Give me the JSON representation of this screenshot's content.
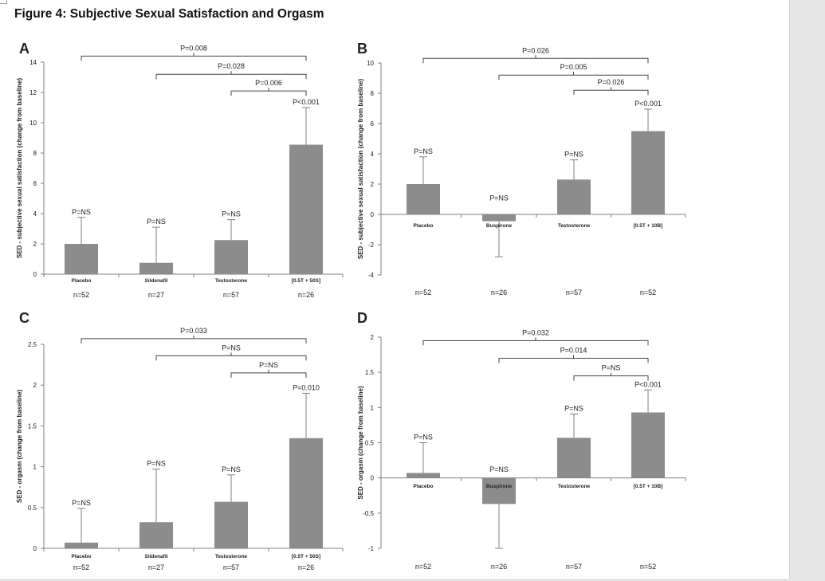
{
  "figure": {
    "title": "Figure 4: Subjective Sexual Satisfaction and Orgasm"
  },
  "colors": {
    "bar": "#8c8c8c",
    "axis": "#7f7f7f",
    "text": "#222222"
  },
  "chart_data": [
    {
      "panel": "A",
      "type": "bar",
      "ylabel": "SED - subjective sexual satisfaction (change from baseline)",
      "ylim": [
        0,
        14
      ],
      "ytick_labels": [
        "0",
        "2",
        "4",
        "6",
        "8",
        "10",
        "12",
        "14"
      ],
      "yticks": [
        0,
        2,
        4,
        6,
        8,
        10,
        12,
        14
      ],
      "categories": [
        "Placebo",
        "Sildenafil",
        "Testosterone",
        "[0.5T + 50S]"
      ],
      "values": [
        2.0,
        0.75,
        2.25,
        8.55
      ],
      "error_upper": [
        3.75,
        3.1,
        3.6,
        11.0
      ],
      "n_labels": [
        "n=52",
        "n=27",
        "n=57",
        "n=26"
      ],
      "bar_labels": [
        "P=NS",
        "P=NS",
        "P=NS",
        "P<0.001"
      ],
      "label_positions": [
        3.75,
        3.1,
        3.6,
        11.0
      ],
      "comparisons": [
        {
          "from": 0,
          "to": 3,
          "label": "P=0.008",
          "level": 14.4
        },
        {
          "from": 1,
          "to": 3,
          "label": "P=0.028",
          "level": 13.2
        },
        {
          "from": 2,
          "to": 3,
          "label": "P=0.006",
          "level": 12.1
        }
      ]
    },
    {
      "panel": "B",
      "type": "bar",
      "ylabel": "SED - subjective sexual satisfaction (change from baseline)",
      "ylim": [
        -4,
        10
      ],
      "ytick_labels": [
        "-4",
        "-2",
        "0",
        "2",
        "4",
        "6",
        "8",
        "10"
      ],
      "yticks": [
        -4,
        -2,
        0,
        2,
        4,
        6,
        8,
        10
      ],
      "categories": [
        "Placebo",
        "Buspirone",
        "Testosterone",
        "[0.5T + 10B]"
      ],
      "values": [
        2.0,
        -0.45,
        2.3,
        5.5
      ],
      "error_upper": [
        3.8,
        -0.45,
        3.6,
        6.95
      ],
      "error_lower": [
        2.0,
        -2.8,
        2.3,
        5.5
      ],
      "n_labels": [
        "n=52",
        "n=26",
        "n=57",
        "n=52"
      ],
      "bar_labels": [
        "P=NS",
        "P=NS",
        "P=NS",
        "P<0.001"
      ],
      "label_positions": [
        3.8,
        0.7,
        3.6,
        6.95
      ],
      "comparisons": [
        {
          "from": 0,
          "to": 3,
          "label": "P=0.026",
          "level": 10.3
        },
        {
          "from": 1,
          "to": 3,
          "label": "P=0.005",
          "level": 9.2
        },
        {
          "from": 2,
          "to": 3,
          "label": "P=0.026",
          "level": 8.2
        }
      ]
    },
    {
      "panel": "C",
      "type": "bar",
      "ylabel": "SED - orgasm (change from baseline)",
      "ylim": [
        0,
        2.5
      ],
      "ytick_labels": [
        "0",
        "0.5",
        "1",
        "1.5",
        "2",
        "2.5"
      ],
      "yticks": [
        0,
        0.5,
        1,
        1.5,
        2,
        2.5
      ],
      "categories": [
        "Placebo",
        "Sildenafil",
        "Testosterone",
        "[0.5T + 50S]"
      ],
      "values": [
        0.07,
        0.32,
        0.57,
        1.35
      ],
      "error_upper": [
        0.49,
        0.97,
        0.9,
        1.9
      ],
      "n_labels": [
        "n=52",
        "n=27",
        "n=57",
        "n=26"
      ],
      "bar_labels": [
        "P=NS",
        "P=NS",
        "P=NS",
        "P=0.010"
      ],
      "label_positions": [
        0.49,
        0.97,
        0.9,
        1.9
      ],
      "comparisons": [
        {
          "from": 0,
          "to": 3,
          "label": "P=0.033",
          "level": 2.57
        },
        {
          "from": 1,
          "to": 3,
          "label": "P=NS",
          "level": 2.36
        },
        {
          "from": 2,
          "to": 3,
          "label": "P=NS",
          "level": 2.15
        }
      ]
    },
    {
      "panel": "D",
      "type": "bar",
      "ylabel": "SED - orgasm (change from baseline)",
      "ylim": [
        -1,
        2
      ],
      "ytick_labels": [
        "-1",
        "-0.5",
        "0",
        "0.5",
        "1",
        "1.5",
        "2"
      ],
      "yticks": [
        -1,
        -0.5,
        0,
        0.5,
        1,
        1.5,
        2
      ],
      "categories": [
        "Placebo",
        "Buspirone",
        "Testosterone",
        "[0.5T + 10B]"
      ],
      "values": [
        0.07,
        -0.37,
        0.57,
        0.93
      ],
      "error_upper": [
        0.5,
        -0.37,
        0.91,
        1.25
      ],
      "error_lower": [
        0.07,
        -1.0,
        0.57,
        0.93
      ],
      "n_labels": [
        "n=52",
        "n=26",
        "n=57",
        "n=52"
      ],
      "bar_labels": [
        "P=NS",
        "P=NS",
        "P=NS",
        "P<0.001"
      ],
      "label_positions": [
        0.5,
        0.04,
        0.91,
        1.25
      ],
      "comparisons": [
        {
          "from": 0,
          "to": 3,
          "label": "P=0.032",
          "level": 1.95
        },
        {
          "from": 1,
          "to": 3,
          "label": "P=0.014",
          "level": 1.7
        },
        {
          "from": 2,
          "to": 3,
          "label": "P=NS",
          "level": 1.45
        }
      ]
    }
  ]
}
